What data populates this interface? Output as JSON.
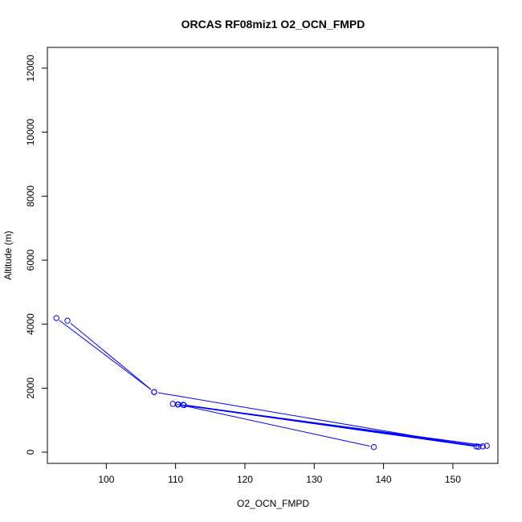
{
  "chart_data": {
    "type": "line",
    "title": "ORCAS RF08miz1 O2_OCN_FMPD",
    "xlabel": "O2_OCN_FMPD",
    "ylabel": "Altitude (m)",
    "xlim": [
      91.5,
      156.5
    ],
    "ylim": [
      -350,
      12650
    ],
    "xticks": [
      100,
      110,
      120,
      130,
      140,
      150
    ],
    "yticks": [
      0,
      2000,
      4000,
      6000,
      8000,
      10000,
      12000
    ],
    "series_color": "#0000ff",
    "series": [
      {
        "x": [
          92.8,
          106.9,
          153.4,
          109.6,
          110.3,
          153.7,
          111.1,
          154.3,
          111.2,
          154.9,
          110.4,
          138.6
        ],
        "y": [
          4190,
          1880,
          180,
          1510,
          1490,
          170,
          1480,
          180,
          1470,
          200,
          1490,
          160
        ]
      },
      {
        "x": [
          94.4,
          106.9
        ],
        "y": [
          4110,
          1880
        ]
      }
    ]
  }
}
